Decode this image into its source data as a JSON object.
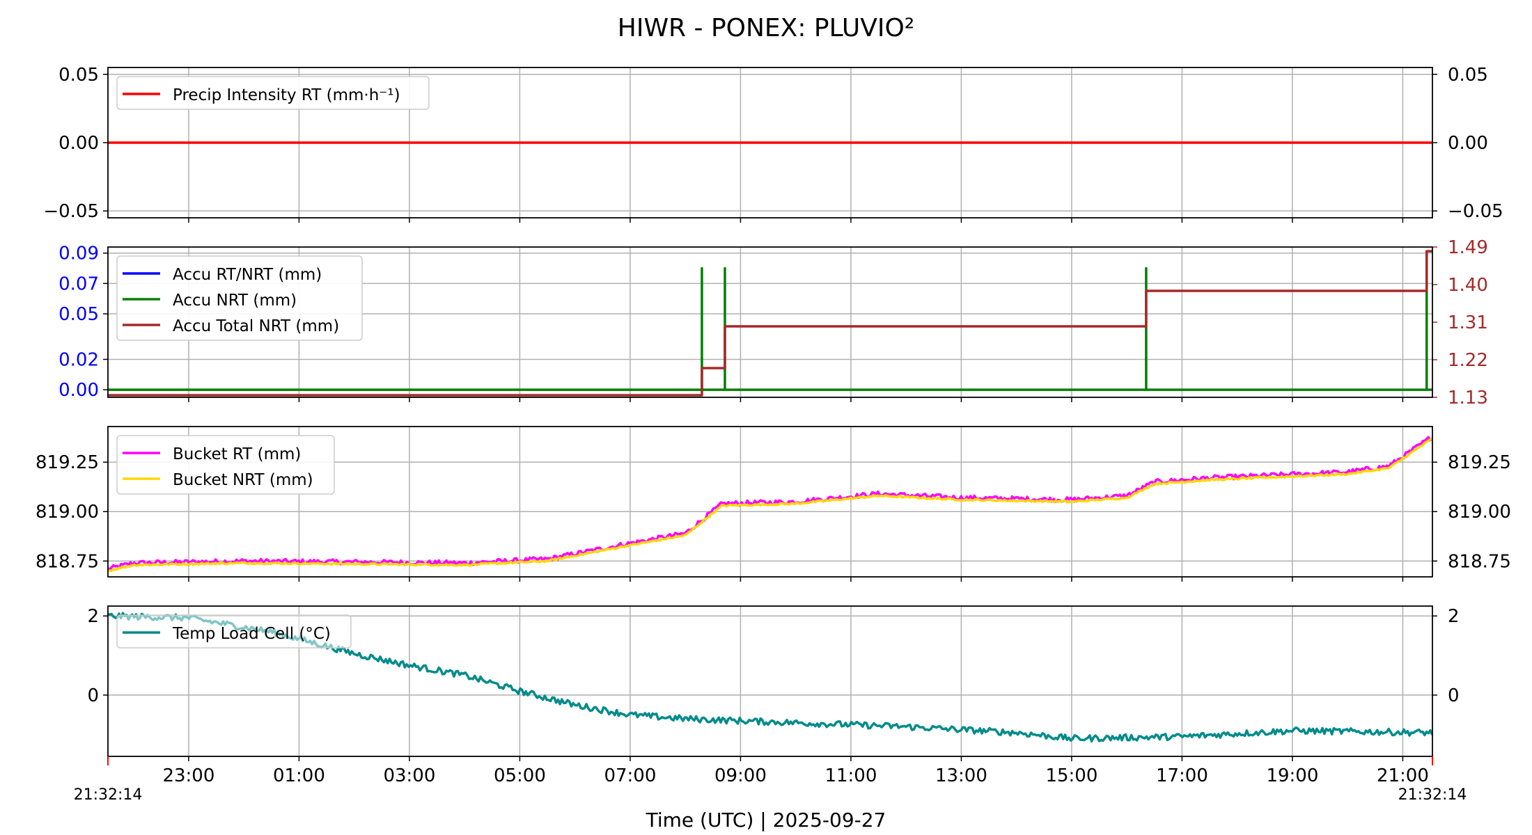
{
  "title": "HIWR - PONEX: PLUVIO²",
  "xlabel": "Time (UTC)  |  2025-09-27",
  "x_start_label": "21:32:14",
  "x_end_label": "21:32:14",
  "x_ticks": [
    "23:00",
    "01:00",
    "03:00",
    "05:00",
    "07:00",
    "09:00",
    "11:00",
    "13:00",
    "15:00",
    "17:00",
    "19:00",
    "21:00"
  ],
  "colors": {
    "precip": "#ff0000",
    "accu_rt": "#0000ff",
    "accu_nrt": "#008000",
    "accu_total": "#a52a2a",
    "bucket_rt": "#ff00ff",
    "bucket_nrt": "#ffd700",
    "temp": "#008b8b",
    "left_axis_accu": "#0000ff",
    "right_axis_accu": "#a52a2a",
    "edge_marker": "#ff0000"
  },
  "chart_data": [
    {
      "type": "line",
      "x_range": [
        "2025-09-26 21:32:14",
        "2025-09-27 21:32:14"
      ],
      "ylim": [
        -0.055,
        0.055
      ],
      "yticks": [
        "0.05",
        "0.00",
        "−0.05"
      ],
      "ytick_values": [
        0.05,
        0.0,
        -0.05
      ],
      "right_yticks": [
        "0.05",
        "0.00",
        "−0.05"
      ],
      "legend_position": "upper-left",
      "grid": true,
      "series": [
        {
          "name": "Precip Intensity RT (mm·h⁻¹)",
          "color": "#ff0000",
          "x": [
            "2025-09-26 21:32:14",
            "2025-09-27 21:32:14"
          ],
          "y": [
            0.0,
            0.0
          ]
        }
      ]
    },
    {
      "type": "line",
      "x_range": [
        "2025-09-26 21:32:14",
        "2025-09-27 21:32:14"
      ],
      "ylim": [
        -0.005,
        0.094
      ],
      "yticks": [
        "0.09",
        "0.07",
        "0.05",
        "0.02",
        "0.00"
      ],
      "ytick_values": [
        0.09,
        0.07,
        0.05,
        0.02,
        0.0
      ],
      "right_ylim": [
        1.13,
        1.49
      ],
      "right_yticks": [
        "1.49",
        "1.40",
        "1.31",
        "1.22",
        "1.13"
      ],
      "right_ytick_values": [
        1.49,
        1.4,
        1.31,
        1.22,
        1.13
      ],
      "legend_position": "upper-left",
      "grid": true,
      "series": [
        {
          "name": "Accu RT/NRT (mm)",
          "color": "#0000ff",
          "axis": "left",
          "x": [],
          "y": []
        },
        {
          "name": "Accu NRT (mm)",
          "color": "#008000",
          "axis": "left",
          "style": "spikes",
          "baseline": 0.0,
          "x": [
            "2025-09-27 08:18",
            "2025-09-27 08:43",
            "2025-09-27 16:21",
            "2025-09-27 21:26"
          ],
          "y": [
            0.08,
            0.08,
            0.08,
            0.09
          ]
        },
        {
          "name": "Accu Total NRT (mm)",
          "color": "#a52a2a",
          "axis": "right",
          "style": "step",
          "x": [
            "2025-09-26 21:32",
            "2025-09-27 08:18",
            "2025-09-27 08:43",
            "2025-09-27 16:21",
            "2025-09-27 21:26",
            "2025-09-27 21:32"
          ],
          "y": [
            1.135,
            1.2,
            1.3,
            1.385,
            1.48,
            1.48
          ]
        }
      ]
    },
    {
      "type": "line",
      "x_range": [
        "2025-09-26 21:32:14",
        "2025-09-27 21:32:14"
      ],
      "ylim": [
        818.67,
        819.43
      ],
      "yticks": [
        "819.25",
        "819.00",
        "818.75"
      ],
      "ytick_values": [
        819.25,
        819.0,
        818.75
      ],
      "right_yticks": [
        "819.25",
        "819.00",
        "818.75"
      ],
      "legend_position": "upper-left",
      "grid": true,
      "series": [
        {
          "name": "Bucket RT (mm)",
          "color": "#ff00ff",
          "noise": 0.012,
          "x": [
            "2025-09-26 21:32",
            "2025-09-26 22:00",
            "2025-09-27 00:00",
            "2025-09-27 04:00",
            "2025-09-27 05:30",
            "2025-09-27 07:00",
            "2025-09-27 08:00",
            "2025-09-27 08:40",
            "2025-09-27 10:00",
            "2025-09-27 11:30",
            "2025-09-27 13:00",
            "2025-09-27 15:00",
            "2025-09-27 16:00",
            "2025-09-27 16:30",
            "2025-09-27 17:30",
            "2025-09-27 20:00",
            "2025-09-27 20:45",
            "2025-09-27 21:32"
          ],
          "y": [
            818.71,
            818.74,
            818.75,
            818.74,
            818.76,
            818.84,
            818.89,
            819.04,
            819.05,
            819.09,
            819.07,
            819.06,
            819.08,
            819.15,
            819.17,
            819.2,
            819.23,
            819.38
          ]
        },
        {
          "name": "Bucket NRT (mm)",
          "color": "#ffd700",
          "noise": 0.004,
          "x": [
            "2025-09-26 21:32",
            "2025-09-26 22:00",
            "2025-09-27 00:00",
            "2025-09-27 04:00",
            "2025-09-27 05:30",
            "2025-09-27 07:00",
            "2025-09-27 08:00",
            "2025-09-27 08:40",
            "2025-09-27 10:00",
            "2025-09-27 11:30",
            "2025-09-27 13:00",
            "2025-09-27 15:00",
            "2025-09-27 16:00",
            "2025-09-27 16:30",
            "2025-09-27 17:30",
            "2025-09-27 20:00",
            "2025-09-27 20:45",
            "2025-09-27 21:32"
          ],
          "y": [
            818.7,
            818.73,
            818.74,
            818.73,
            818.75,
            818.83,
            818.88,
            819.03,
            819.04,
            819.08,
            819.06,
            819.05,
            819.07,
            819.14,
            819.16,
            819.19,
            819.22,
            819.37
          ]
        }
      ]
    },
    {
      "type": "line",
      "x_range": [
        "2025-09-26 21:32:14",
        "2025-09-27 21:32:14"
      ],
      "ylim": [
        -1.55,
        2.25
      ],
      "yticks": [
        "2",
        "0"
      ],
      "ytick_values": [
        2,
        0
      ],
      "right_yticks": [
        "2",
        "0"
      ],
      "legend_position": "upper-left",
      "grid": true,
      "series": [
        {
          "name": "Temp Load Cell (°C)",
          "color": "#008b8b",
          "noise": 0.08,
          "x": [
            "2025-09-26 21:32",
            "2025-09-26 23:00",
            "2025-09-27 00:30",
            "2025-09-27 02:00",
            "2025-09-27 03:00",
            "2025-09-27 04:00",
            "2025-09-27 05:00",
            "2025-09-27 06:00",
            "2025-09-27 07:00",
            "2025-09-27 08:00",
            "2025-09-27 10:00",
            "2025-09-27 12:00",
            "2025-09-27 14:00",
            "2025-09-27 15:00",
            "2025-09-27 17:00",
            "2025-09-27 19:00",
            "2025-09-27 21:32"
          ],
          "y": [
            2.0,
            1.95,
            1.6,
            1.05,
            0.75,
            0.5,
            0.1,
            -0.25,
            -0.5,
            -0.6,
            -0.7,
            -0.8,
            -0.95,
            -1.1,
            -1.05,
            -0.9,
            -0.95
          ]
        }
      ]
    }
  ]
}
